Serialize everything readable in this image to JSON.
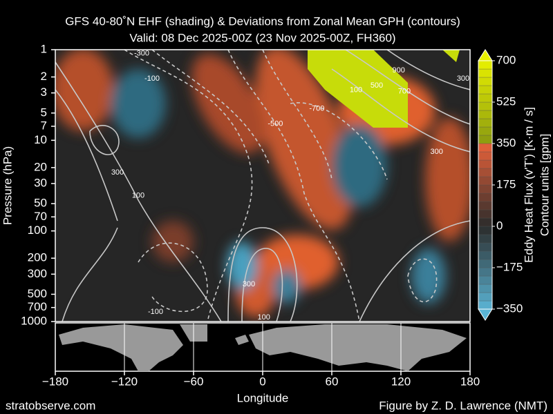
{
  "chart_data": {
    "type": "contour",
    "title": "GFS 40-80˚N EHF (shading) & Deviations from Zonal Mean GPH (contours)",
    "subtitle": "Valid: 08 Dec 2025-00Z  (23 Nov 2025-00Z, FH360)",
    "xlabel": "Longitude",
    "ylabel": "Pressure (hPa)",
    "xlim": [
      -180,
      180
    ],
    "xticks": [
      {
        "value": -180,
        "label": "−180"
      },
      {
        "value": -120,
        "label": "−120"
      },
      {
        "value": -60,
        "label": "−60"
      },
      0,
      60,
      120,
      180
    ],
    "ylim": [
      1000,
      1
    ],
    "yscale": "log",
    "yticks": [
      1,
      2,
      3,
      5,
      7,
      10,
      20,
      30,
      50,
      70,
      100,
      200,
      300,
      500,
      700,
      1000
    ],
    "colorbar": {
      "label": "Eddy Heat Flux (v'T') [K·m / s]",
      "lim": [
        -350,
        700
      ],
      "ticks": [
        {
          "value": -350,
          "label": "−350"
        },
        {
          "value": -175,
          "label": "−175"
        },
        0,
        175,
        350,
        525,
        700
      ]
    },
    "contour_units": "Contour units [gpm]",
    "contour_labels": [
      {
        "x": -105,
        "y": 1.1,
        "value": -300
      },
      {
        "x": -96,
        "y": 2.1,
        "value": -100
      },
      {
        "x": 81,
        "y": 2.8,
        "value": 100
      },
      {
        "x": 99,
        "y": 2.5,
        "value": 500
      },
      {
        "x": 118,
        "y": 1.7,
        "value": 900
      },
      {
        "x": 123,
        "y": 2.9,
        "value": 700
      },
      {
        "x": 174,
        "y": 2.1,
        "value": 300
      },
      {
        "x": 47,
        "y": 4.5,
        "value": -700
      },
      {
        "x": 11,
        "y": 6.6,
        "value": -500
      },
      {
        "x": 151,
        "y": 13.4,
        "value": 300
      },
      {
        "x": -126,
        "y": 22.7,
        "value": 300
      },
      {
        "x": -108,
        "y": 41,
        "value": 100
      },
      {
        "x": -12,
        "y": 390,
        "value": 300
      },
      {
        "x": -93,
        "y": 786,
        "value": -100
      },
      {
        "x": 1,
        "y": 905,
        "value": 100
      }
    ],
    "footer_left": "stratobserve.com",
    "footer_right": "Figure by Z. D. Lawrence (NMT)"
  }
}
